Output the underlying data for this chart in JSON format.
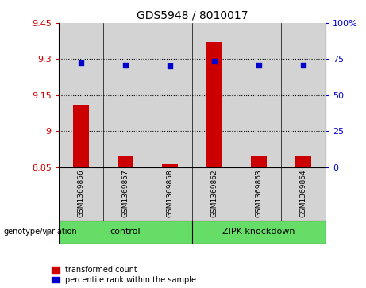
{
  "title": "GDS5948 / 8010017",
  "samples": [
    "GSM1369856",
    "GSM1369857",
    "GSM1369858",
    "GSM1369862",
    "GSM1369863",
    "GSM1369864"
  ],
  "bar_values": [
    9.11,
    8.895,
    8.862,
    9.37,
    8.895,
    8.895
  ],
  "dot_values": [
    9.285,
    9.275,
    9.27,
    9.29,
    9.275,
    9.275
  ],
  "ylim_left": [
    8.85,
    9.45
  ],
  "ylim_right": [
    0,
    100
  ],
  "yticks_left": [
    8.85,
    9.0,
    9.15,
    9.3,
    9.45
  ],
  "yticks_right": [
    0,
    25,
    50,
    75,
    100
  ],
  "ytick_labels_left": [
    "8.85",
    "9",
    "9.15",
    "9.3",
    "9.45"
  ],
  "ytick_labels_right": [
    "0",
    "25",
    "50",
    "75",
    "100%"
  ],
  "bar_color": "#cc0000",
  "dot_color": "#0000cc",
  "left_tick_color": "#cc0000",
  "right_tick_color": "#0000cc",
  "legend_bar_label": "transformed count",
  "legend_dot_label": "percentile rank within the sample",
  "genotype_label": "genotype/variation",
  "group_labels": [
    "control",
    "ZIPK knockdown"
  ],
  "group_colors": [
    "#66dd66",
    "#66dd66"
  ],
  "sample_bg": "#d3d3d3",
  "bar_width": 0.35,
  "grid_yticks": [
    9.0,
    9.15,
    9.3
  ]
}
